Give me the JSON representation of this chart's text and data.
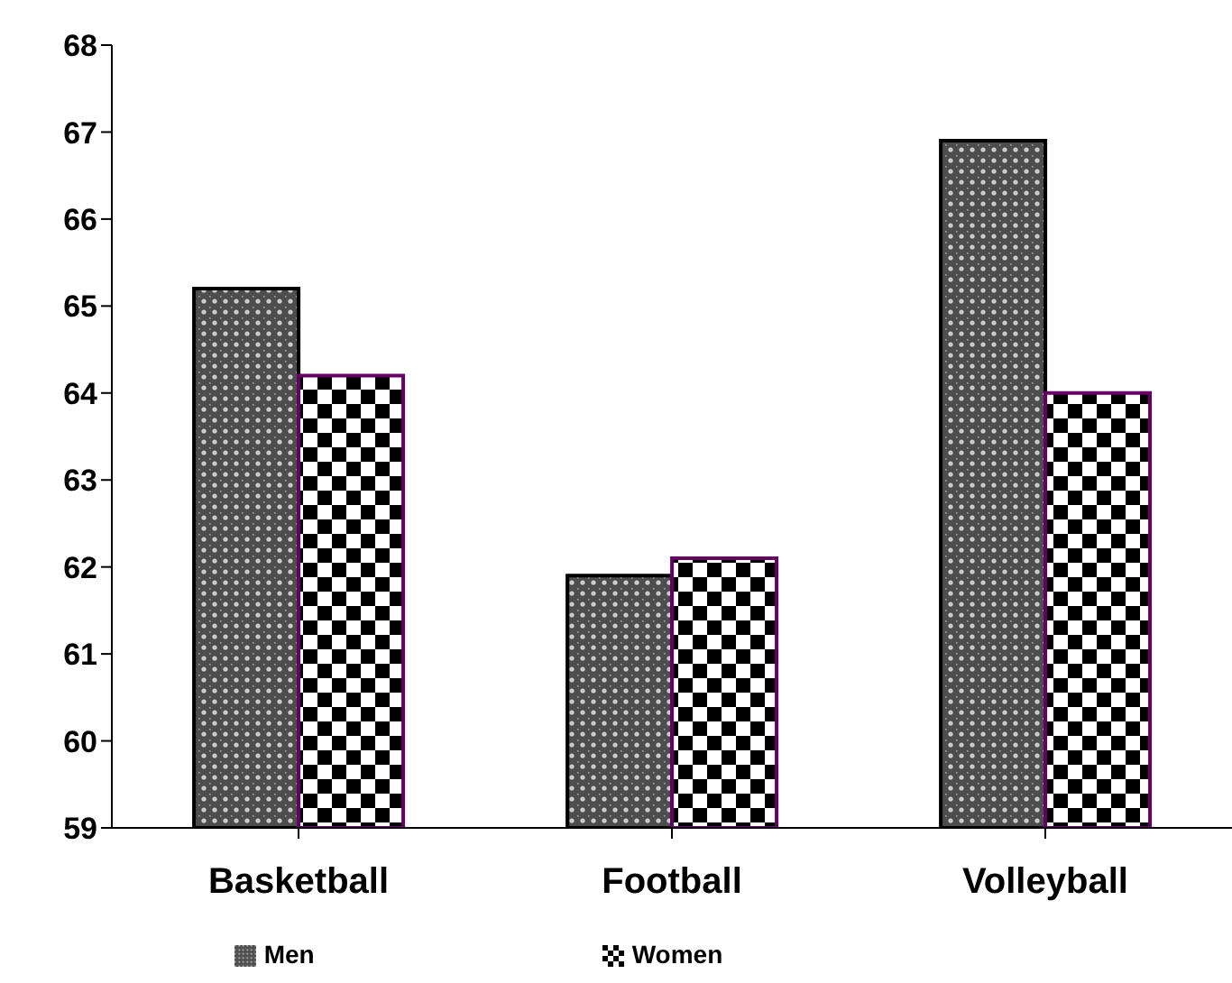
{
  "chart_data": {
    "type": "bar",
    "categories": [
      "Basketball",
      "Football",
      "Volleyball"
    ],
    "series": [
      {
        "name": "Men",
        "color": "#000000",
        "values": [
          65.2,
          61.9,
          66.9
        ]
      },
      {
        "name": "Women",
        "color": "#660066",
        "values": [
          64.2,
          62.1,
          64.0
        ]
      }
    ],
    "ylim": [
      59,
      68
    ],
    "yticks": [
      59,
      60,
      61,
      62,
      63,
      64,
      65,
      66,
      67,
      68
    ],
    "grid": false,
    "legend": "bottom"
  }
}
